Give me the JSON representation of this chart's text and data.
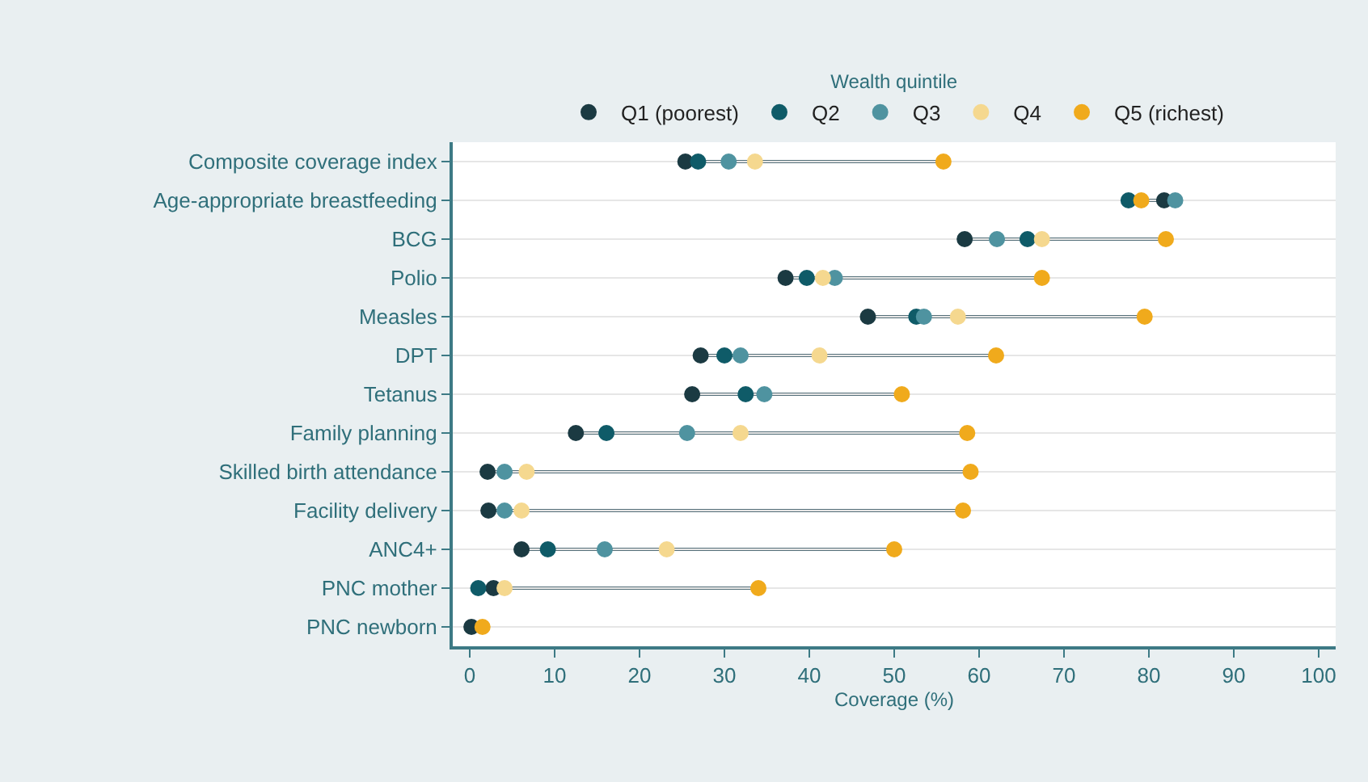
{
  "chart_data": {
    "type": "scatter",
    "orientation": "horizontal",
    "xlabel": "Coverage (%)",
    "legend_title": "Wealth quintile",
    "legend": "top",
    "grid": "y",
    "marker": "circle",
    "categories": [
      "Composite coverage index",
      "Age-appropriate breastfeeding",
      "BCG",
      "Polio",
      "Measles",
      "DPT",
      "Tetanus",
      "Family planning",
      "Skilled birth attendance",
      "Facility delivery",
      "ANC4+",
      "PNC mother",
      "PNC newborn"
    ],
    "xlim": [
      -2,
      102
    ],
    "xticks": [
      0,
      10,
      20,
      30,
      40,
      50,
      60,
      70,
      80,
      90,
      100
    ],
    "series": [
      {
        "name": "Q1 (poorest)",
        "color": "#1b3a42",
        "values": [
          25.4,
          81.8,
          58.3,
          37.2,
          46.9,
          27.2,
          26.2,
          12.5,
          2.1,
          2.2,
          6.1,
          2.8,
          0.2
        ]
      },
      {
        "name": "Q2",
        "color": "#0f5b68",
        "values": [
          26.9,
          77.6,
          65.7,
          39.7,
          52.6,
          30.0,
          32.5,
          16.1,
          null,
          null,
          9.2,
          1.0,
          null
        ]
      },
      {
        "name": "Q3",
        "color": "#4f93a0",
        "values": [
          30.5,
          83.1,
          62.1,
          43.0,
          53.5,
          31.9,
          34.7,
          25.6,
          4.1,
          4.1,
          15.9,
          null,
          null
        ]
      },
      {
        "name": "Q4",
        "color": "#f5d88f",
        "values": [
          33.6,
          null,
          67.4,
          41.6,
          57.5,
          41.2,
          null,
          31.9,
          6.7,
          6.1,
          23.2,
          4.1,
          null
        ]
      },
      {
        "name": "Q5 (richest)",
        "color": "#f0aa1c",
        "values": [
          55.8,
          79.1,
          82.0,
          67.4,
          79.5,
          62.0,
          50.9,
          58.6,
          59.0,
          58.1,
          50.0,
          34.0,
          1.5
        ]
      }
    ]
  }
}
